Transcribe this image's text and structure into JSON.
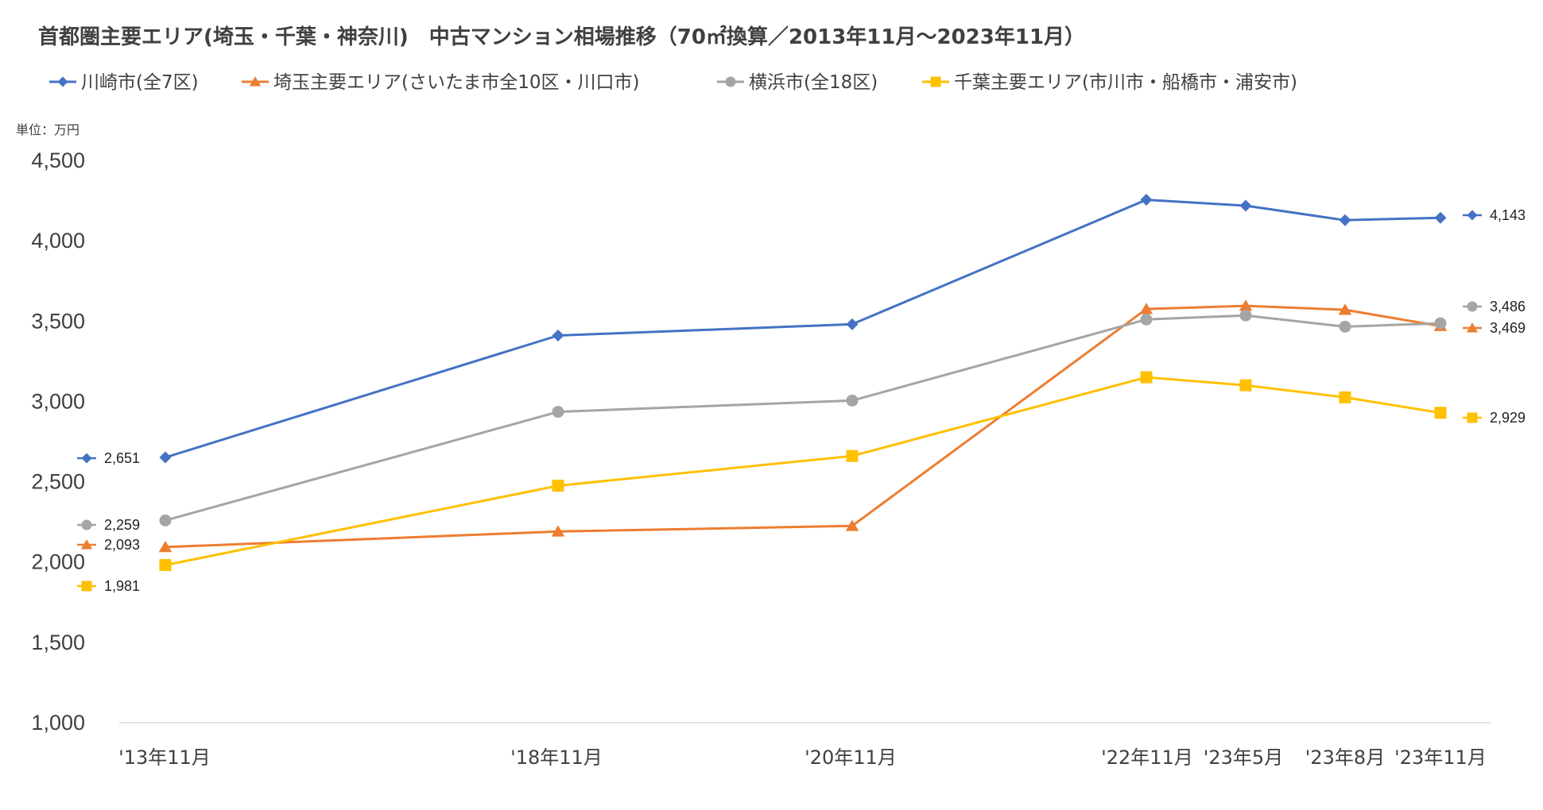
{
  "chart_data": {
    "type": "line",
    "title": "首都圏主要エリア(埼玉・千葉・神奈川)　中古マンション相場推移（70㎡換算／2013年11月〜2023年11月）",
    "unit_label": "単位：万円",
    "categories": [
      "'13年11月",
      "'18年11月",
      "'20年11月",
      "'22年11月",
      "'23年5月",
      "'23年8月",
      "'23年11月"
    ],
    "x": [
      2013.875,
      2018.875,
      2020.875,
      2022.875,
      2023.375,
      2023.625,
      2023.875
    ],
    "ylim": [
      1000,
      4500
    ],
    "yticks": [
      1000,
      1500,
      2000,
      2500,
      3000,
      3500,
      4000,
      4500
    ],
    "ytick_labels": [
      "1,000",
      "1,500",
      "2,000",
      "2,500",
      "3,000",
      "3,500",
      "4,000",
      "4,500"
    ],
    "grid": false,
    "legend_position": "top",
    "series": [
      {
        "name": "川崎市(全7区)",
        "color": "#4472C4",
        "marker": "diamond",
        "values": [
          2651,
          3410,
          3480,
          4255,
          4218,
          4128,
          4143
        ],
        "start_label": "2,651",
        "end_label": "4,143"
      },
      {
        "name": "埼玉主要エリア(さいたま市全10区・川口市)",
        "color": "#ED7D31",
        "marker": "triangle",
        "values": [
          2093,
          2190,
          2225,
          3575,
          3595,
          3570,
          3469
        ],
        "start_label": "2,093",
        "end_label": "3,469"
      },
      {
        "name": "横浜市(全18区)",
        "color": "#A5A5A5",
        "marker": "circle",
        "values": [
          2259,
          2935,
          3005,
          3510,
          3535,
          3465,
          3486
        ],
        "start_label": "2,259",
        "end_label": "3,486"
      },
      {
        "name": "千葉主要エリア(市川市・船橋市・浦安市)",
        "color": "#FFC000",
        "marker": "square",
        "values": [
          1981,
          2475,
          2660,
          3150,
          3100,
          3025,
          2929
        ],
        "start_label": "1,981",
        "end_label": "2,929"
      }
    ]
  }
}
